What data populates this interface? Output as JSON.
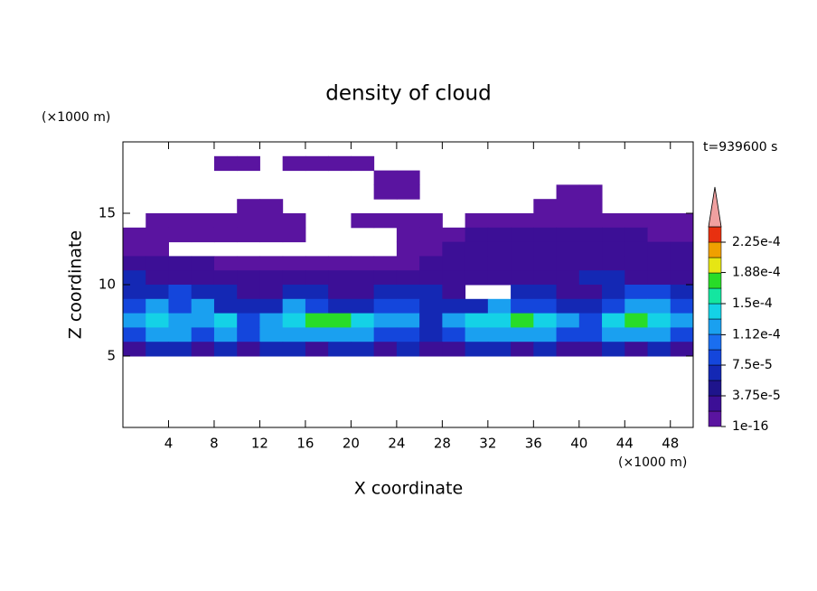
{
  "chart_data": {
    "type": "contour",
    "title": "density of cloud",
    "x_label": "X coordinate",
    "y_label": "Z coordinate",
    "x_unit": "(×1000 m)",
    "y_unit": "(×1000 m)",
    "time_label": "t=939600 s",
    "xlim": [
      0,
      50
    ],
    "ylim": [
      0,
      20
    ],
    "xticks": [
      4,
      8,
      12,
      16,
      20,
      24,
      28,
      32,
      36,
      40,
      44,
      48
    ],
    "yticks": [
      5,
      10,
      15
    ],
    "x": [
      1,
      3,
      5,
      7,
      9,
      11,
      13,
      15,
      17,
      19,
      21,
      23,
      25,
      27,
      29,
      31,
      33,
      35,
      37,
      39,
      41,
      43,
      45,
      47,
      49
    ],
    "z": [
      18.5,
      17.5,
      16.5,
      15.5,
      14.5,
      13.5,
      12.5,
      11.5,
      10.5,
      9.5,
      8.5,
      7.5,
      6.5,
      5.5
    ],
    "values": [
      [
        null,
        null,
        null,
        null,
        5e-06,
        5e-06,
        null,
        5e-06,
        5e-06,
        5e-06,
        5e-06,
        null,
        null,
        null,
        null,
        null,
        null,
        null,
        null,
        null,
        null,
        null,
        null,
        null,
        null
      ],
      [
        null,
        null,
        null,
        null,
        null,
        null,
        null,
        null,
        null,
        null,
        null,
        5e-06,
        5e-06,
        null,
        null,
        null,
        null,
        null,
        null,
        null,
        null,
        null,
        null,
        null,
        null
      ],
      [
        null,
        null,
        null,
        null,
        null,
        null,
        null,
        null,
        null,
        null,
        null,
        5e-06,
        5e-06,
        null,
        null,
        null,
        null,
        null,
        null,
        5e-06,
        5e-06,
        null,
        null,
        null,
        null
      ],
      [
        null,
        null,
        null,
        null,
        null,
        5e-06,
        5e-06,
        null,
        null,
        null,
        null,
        null,
        null,
        null,
        null,
        null,
        null,
        null,
        5e-06,
        5e-06,
        5e-06,
        null,
        null,
        null,
        null
      ],
      [
        null,
        5e-06,
        5e-06,
        5e-06,
        5e-06,
        5e-06,
        5e-06,
        5e-06,
        null,
        null,
        5e-06,
        5e-06,
        5e-06,
        5e-06,
        null,
        5e-06,
        5e-06,
        5e-06,
        5e-06,
        5e-06,
        5e-06,
        5e-06,
        5e-06,
        5e-06,
        5e-06
      ],
      [
        5e-06,
        5e-06,
        5e-06,
        5e-06,
        5e-06,
        5e-06,
        5e-06,
        5e-06,
        null,
        null,
        null,
        null,
        5e-06,
        5e-06,
        5e-06,
        3e-05,
        3e-05,
        3e-05,
        3e-05,
        3e-05,
        3e-05,
        3e-05,
        3e-05,
        5e-06,
        5e-06
      ],
      [
        5e-06,
        5e-06,
        null,
        null,
        null,
        null,
        null,
        null,
        null,
        null,
        null,
        null,
        5e-06,
        5e-06,
        3e-05,
        3e-05,
        3e-05,
        3e-05,
        3e-05,
        3e-05,
        3e-05,
        3e-05,
        3e-05,
        3e-05,
        3e-05
      ],
      [
        3e-05,
        3e-05,
        3e-05,
        3e-05,
        5e-06,
        5e-06,
        5e-06,
        5e-06,
        5e-06,
        5e-06,
        5e-06,
        5e-06,
        5e-06,
        3e-05,
        3e-05,
        3e-05,
        3e-05,
        3e-05,
        3e-05,
        3e-05,
        3e-05,
        3e-05,
        3e-05,
        3e-05,
        3e-05
      ],
      [
        6e-05,
        3e-05,
        3e-05,
        3e-05,
        3e-05,
        3e-05,
        3e-05,
        3e-05,
        3e-05,
        3e-05,
        3e-05,
        3e-05,
        3e-05,
        3e-05,
        3e-05,
        3e-05,
        3e-05,
        3e-05,
        3e-05,
        3e-05,
        6e-05,
        6e-05,
        3e-05,
        3e-05,
        3e-05
      ],
      [
        6e-05,
        6e-05,
        9e-05,
        6e-05,
        6e-05,
        3e-05,
        3e-05,
        6e-05,
        6e-05,
        3e-05,
        3e-05,
        6e-05,
        6e-05,
        6e-05,
        3e-05,
        null,
        null,
        6e-05,
        6e-05,
        3e-05,
        3e-05,
        6e-05,
        9e-05,
        9e-05,
        6e-05
      ],
      [
        9e-05,
        0.00012,
        9e-05,
        0.00012,
        6e-05,
        6e-05,
        6e-05,
        0.00012,
        9e-05,
        6e-05,
        6e-05,
        9e-05,
        9e-05,
        6e-05,
        6e-05,
        6e-05,
        0.00012,
        9e-05,
        9e-05,
        6e-05,
        6e-05,
        9e-05,
        0.00012,
        0.00012,
        9e-05
      ],
      [
        0.00012,
        0.000145,
        0.00012,
        0.00012,
        0.000145,
        9e-05,
        0.00012,
        0.000145,
        0.00017,
        0.00017,
        0.000145,
        0.00012,
        0.00012,
        6e-05,
        0.00012,
        0.000145,
        0.000145,
        0.00017,
        0.000145,
        0.00012,
        9e-05,
        0.000145,
        0.00017,
        0.000145,
        0.00012
      ],
      [
        9e-05,
        0.00012,
        0.00012,
        9e-05,
        0.00012,
        9e-05,
        0.00012,
        0.00012,
        0.00012,
        0.00012,
        0.00012,
        9e-05,
        9e-05,
        6e-05,
        9e-05,
        0.00012,
        0.00012,
        0.00012,
        0.00012,
        9e-05,
        9e-05,
        0.00012,
        0.00012,
        0.00012,
        9e-05
      ],
      [
        3e-05,
        6e-05,
        6e-05,
        3e-05,
        6e-05,
        3e-05,
        6e-05,
        6e-05,
        3e-05,
        6e-05,
        6e-05,
        3e-05,
        6e-05,
        3e-05,
        3e-05,
        6e-05,
        6e-05,
        3e-05,
        6e-05,
        3e-05,
        3e-05,
        6e-05,
        3e-05,
        6e-05,
        3e-05
      ]
    ],
    "colorbar": {
      "levels": [
        1e-16,
        1.875e-05,
        3.75e-05,
        5.625e-05,
        7.5e-05,
        9.375e-05,
        0.0001125,
        0.00013125,
        0.00015,
        0.00016875,
        0.0001875,
        0.00020625,
        0.000225
      ],
      "colors": [
        "#5a14a0",
        "#3c0f96",
        "#1e148c",
        "#1428b4",
        "#1446dc",
        "#1a6ef0",
        "#1aa0f0",
        "#14d2e6",
        "#14e6a0",
        "#28dc28",
        "#e6e614",
        "#f0a000",
        "#e83010"
      ],
      "extend_color": "#f0a0a0",
      "ticks": [
        1e-16,
        {
          "value": 3.75e-05,
          "label": "3.75e-5"
        },
        {
          "value": 7.5e-05,
          "label": "7.5e-5"
        },
        {
          "value": 0.000112,
          "label": "1.12e-4"
        },
        {
          "value": 0.00015,
          "label": "1.5e-4"
        },
        {
          "value": 0.000188,
          "label": "1.88e-4"
        },
        {
          "value": 0.000225,
          "label": "2.25e-4"
        }
      ]
    }
  }
}
